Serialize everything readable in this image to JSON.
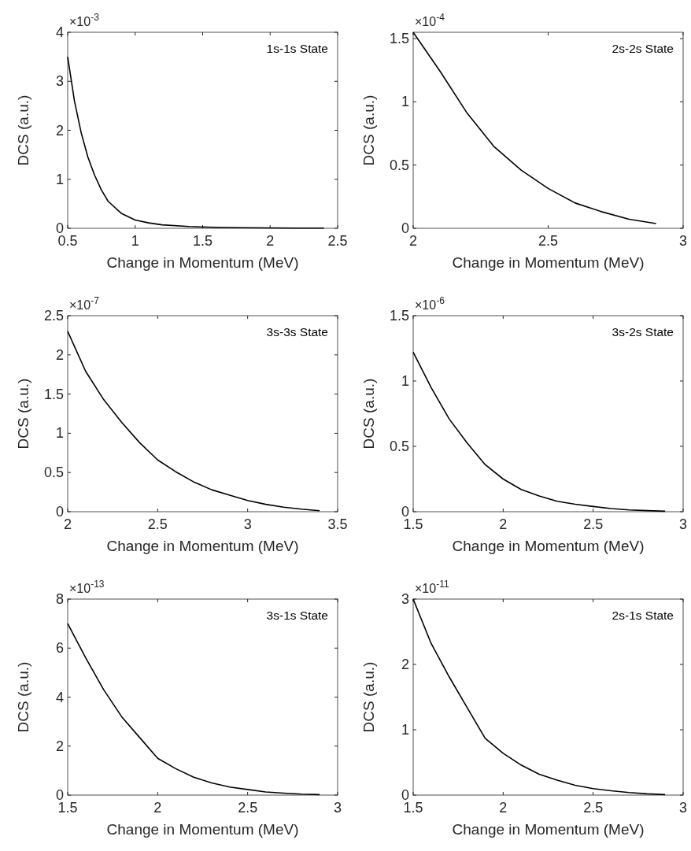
{
  "chart_data": [
    {
      "type": "line",
      "xlabel": "Change in Momentum (MeV)",
      "ylabel": "DCS (a.u.)",
      "annotations": [
        "1s-1s State",
        "×10$^{-3}$"
      ],
      "xlim": [
        0.5,
        2.5
      ],
      "xticks": [
        0.5,
        1,
        1.5,
        2,
        2.5
      ],
      "ylim": [
        0,
        4
      ],
      "yticks": [
        0,
        1,
        2,
        3,
        4
      ],
      "series": [
        {
          "color": "#000000",
          "x": [
            0.5,
            0.55,
            0.6,
            0.65,
            0.7,
            0.75,
            0.8,
            0.9,
            1.0,
            1.1,
            1.2,
            1.4,
            1.6,
            1.8,
            2.0,
            2.2,
            2.4
          ],
          "values": [
            3.5,
            2.6,
            1.95,
            1.45,
            1.08,
            0.78,
            0.55,
            0.3,
            0.17,
            0.11,
            0.07,
            0.035,
            0.02,
            0.012,
            0.007,
            0.004,
            0.003
          ]
        }
      ]
    },
    {
      "type": "line",
      "xlabel": "Change in Momentum (MeV)",
      "ylabel": "DCS (a.u.)",
      "annotations": [
        "2s-2s State",
        "×10$^{-4}$"
      ],
      "xlim": [
        2,
        3
      ],
      "xticks": [
        2,
        2.5,
        3
      ],
      "ylim": [
        0,
        1.55
      ],
      "yticks": [
        0,
        0.5,
        1,
        1.5
      ],
      "series": [
        {
          "color": "#000000",
          "x": [
            2.0,
            2.1,
            2.2,
            2.3,
            2.4,
            2.5,
            2.6,
            2.7,
            2.8,
            2.9
          ],
          "values": [
            1.55,
            1.24,
            0.91,
            0.645,
            0.46,
            0.315,
            0.2,
            0.13,
            0.072,
            0.037
          ]
        }
      ]
    },
    {
      "type": "line",
      "xlabel": "Change in Momentum (MeV)",
      "ylabel": "DCS (a.u.)",
      "annotations": [
        "3s-3s State",
        "×10$^{-7}$"
      ],
      "xlim": [
        2,
        3.5
      ],
      "xticks": [
        2,
        2.5,
        3,
        3.5
      ],
      "ylim": [
        0,
        2.5
      ],
      "yticks": [
        0,
        0.5,
        1,
        1.5,
        2,
        2.5
      ],
      "series": [
        {
          "color": "#000000",
          "x": [
            2.0,
            2.1,
            2.2,
            2.3,
            2.4,
            2.5,
            2.6,
            2.7,
            2.8,
            2.9,
            3.0,
            3.1,
            3.2,
            3.3,
            3.4
          ],
          "values": [
            2.3,
            1.79,
            1.43,
            1.14,
            0.88,
            0.66,
            0.51,
            0.38,
            0.28,
            0.21,
            0.143,
            0.094,
            0.058,
            0.032,
            0.013
          ]
        }
      ]
    },
    {
      "type": "line",
      "xlabel": "Change in Momentum (MeV)",
      "ylabel": "DCS (a.u.)",
      "annotations": [
        "3s-2s State",
        "×10$^{-6}$"
      ],
      "xlim": [
        1.5,
        3
      ],
      "xticks": [
        1.5,
        2,
        2.5,
        3
      ],
      "ylim": [
        0,
        1.5
      ],
      "yticks": [
        0,
        0.5,
        1,
        1.5
      ],
      "series": [
        {
          "color": "#000000",
          "x": [
            1.5,
            1.6,
            1.7,
            1.8,
            1.9,
            2.0,
            2.1,
            2.2,
            2.3,
            2.4,
            2.5,
            2.6,
            2.7,
            2.8,
            2.9
          ],
          "values": [
            1.22,
            0.95,
            0.71,
            0.525,
            0.36,
            0.25,
            0.17,
            0.12,
            0.08,
            0.057,
            0.04,
            0.024,
            0.014,
            0.008,
            0.004
          ]
        }
      ]
    },
    {
      "type": "line",
      "xlabel": "Change in Momentum (MeV)",
      "ylabel": "DCS (a.u.)",
      "annotations": [
        "3s-1s State",
        "×10$^{-13}$"
      ],
      "xlim": [
        1.5,
        3
      ],
      "xticks": [
        1.5,
        2,
        2.5,
        3
      ],
      "ylim": [
        0,
        8
      ],
      "yticks": [
        0,
        2,
        4,
        6,
        8
      ],
      "series": [
        {
          "color": "#000000",
          "x": [
            1.5,
            1.6,
            1.7,
            1.8,
            1.9,
            2.0,
            2.1,
            2.2,
            2.3,
            2.4,
            2.5,
            2.6,
            2.7,
            2.8,
            2.9
          ],
          "values": [
            7.0,
            5.6,
            4.3,
            3.2,
            2.35,
            1.5,
            1.08,
            0.73,
            0.5,
            0.33,
            0.23,
            0.13,
            0.08,
            0.04,
            0.02
          ]
        }
      ]
    },
    {
      "type": "line",
      "xlabel": "Change in Momentum (MeV)",
      "ylabel": "DCS (a.u.)",
      "annotations": [
        "2s-1s State",
        "×10$^{-11}$"
      ],
      "xlim": [
        1.5,
        3
      ],
      "xticks": [
        1.5,
        2,
        2.5,
        3
      ],
      "ylim": [
        0,
        3
      ],
      "yticks": [
        0,
        1,
        2,
        3
      ],
      "series": [
        {
          "color": "#000000",
          "x": [
            1.5,
            1.6,
            1.7,
            1.8,
            1.9,
            2.0,
            2.1,
            2.2,
            2.3,
            2.4,
            2.5,
            2.6,
            2.7,
            2.8,
            2.9
          ],
          "values": [
            3.0,
            2.32,
            1.81,
            1.34,
            0.87,
            0.64,
            0.46,
            0.32,
            0.23,
            0.15,
            0.1,
            0.066,
            0.039,
            0.02,
            0.008
          ]
        }
      ]
    }
  ]
}
